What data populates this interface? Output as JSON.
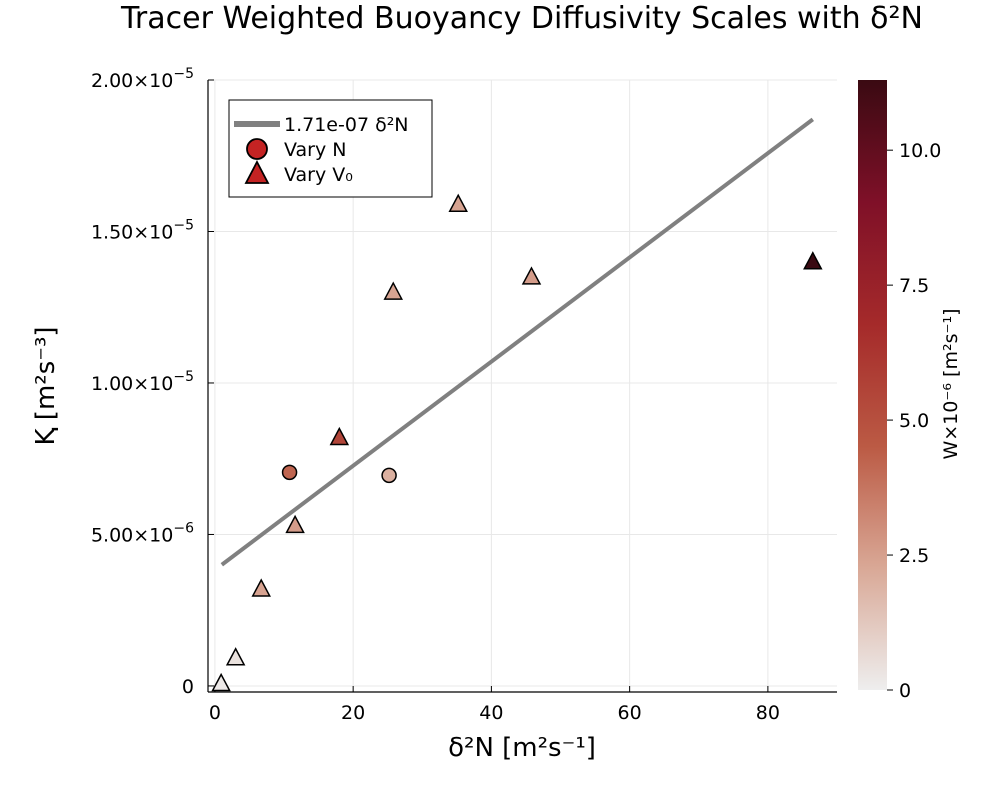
{
  "chart_data": {
    "type": "scatter",
    "title": "Tracer Weighted Buoyancy Diffusivity Scales with δ²N",
    "xlabel": "δ²N [m²s⁻¹]",
    "ylabel": "Ⱪ [m²s⁻³]",
    "xlim": [
      -1,
      90
    ],
    "ylim": [
      -2e-07,
      2e-05
    ],
    "x_ticks": [
      0,
      20,
      40,
      60,
      80
    ],
    "x_tick_labels": [
      "0",
      "20",
      "40",
      "60",
      "80"
    ],
    "y_ticks": [
      0,
      5e-06,
      1e-05,
      1.5e-05,
      2e-05
    ],
    "y_tick_labels": [
      "0",
      "5.00×10",
      "1.00×10",
      "1.50×10",
      "2.00×10"
    ],
    "y_tick_exponents": [
      "",
      "−6",
      "−5",
      "−5",
      "−5"
    ],
    "grid": true,
    "fit_line": {
      "label": "1.71e-07 δ²N",
      "color": "#808080",
      "x": [
        1,
        86.5
      ],
      "y": [
        4e-06,
        1.87e-05
      ]
    },
    "series": [
      {
        "name": "Vary N",
        "marker": "circle",
        "points": [
          {
            "x": 10.8,
            "y": 7.05e-06,
            "w": 4.2
          },
          {
            "x": 25.2,
            "y": 6.95e-06,
            "w": 2.0
          }
        ]
      },
      {
        "name": "Vary V₀",
        "marker": "triangle",
        "points": [
          {
            "x": 0.9,
            "y": 8e-08,
            "w": 0.15
          },
          {
            "x": 3.0,
            "y": 9.3e-07,
            "w": 0.4
          },
          {
            "x": 6.7,
            "y": 3.2e-06,
            "w": 2.4
          },
          {
            "x": 11.6,
            "y": 5.3e-06,
            "w": 2.6
          },
          {
            "x": 18.0,
            "y": 8.2e-06,
            "w": 5.5
          },
          {
            "x": 25.8,
            "y": 1.3e-05,
            "w": 2.4
          },
          {
            "x": 35.2,
            "y": 1.59e-05,
            "w": 2.4
          },
          {
            "x": 45.8,
            "y": 1.35e-05,
            "w": 2.6
          },
          {
            "x": 86.5,
            "y": 1.4e-05,
            "w": 11.3
          }
        ]
      }
    ],
    "legend": {
      "position": "top-left",
      "marker_color": "#c42323"
    },
    "colorbar": {
      "label": "W×10⁻⁶ [m²s⁻¹]",
      "range": [
        0,
        11.3
      ],
      "ticks": [
        0,
        2.5,
        5.0,
        7.5,
        10.0
      ],
      "tick_labels": [
        "0",
        "2.5",
        "5.0",
        "7.5",
        "10.0"
      ],
      "colors": [
        "#eeeeee",
        "#d9a896",
        "#bb5a44",
        "#a52a2a",
        "#7f1028",
        "#3a0a12"
      ]
    }
  }
}
